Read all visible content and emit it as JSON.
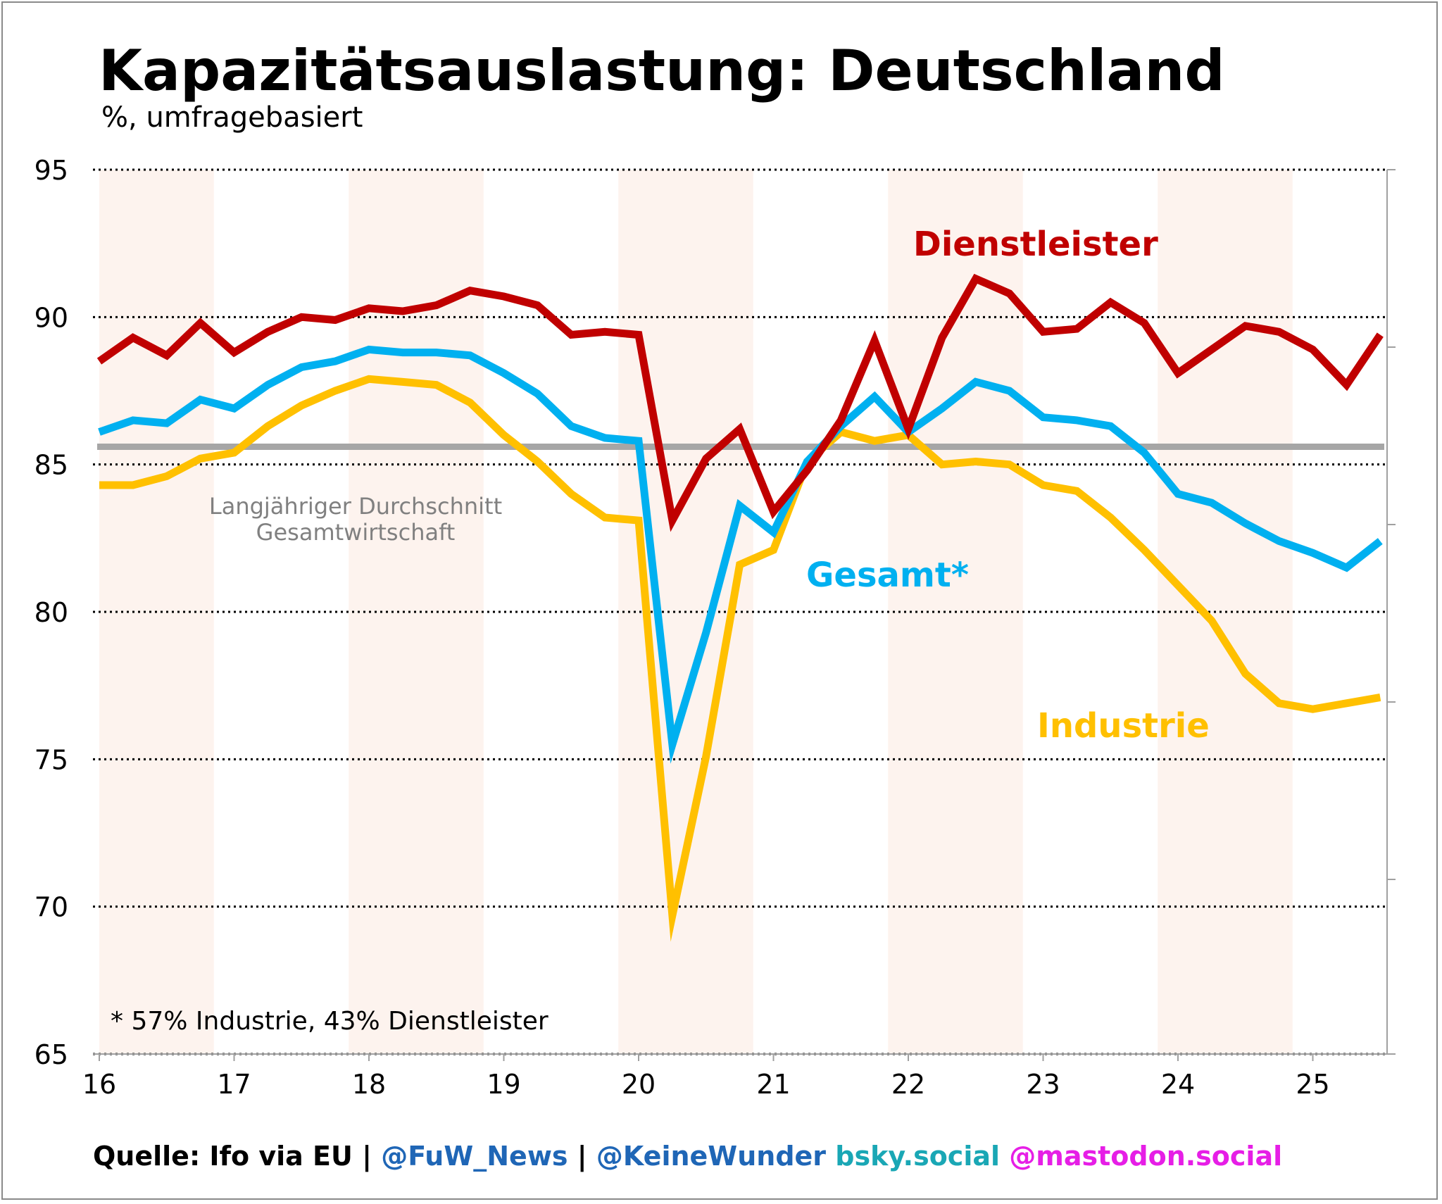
{
  "title": "Kapazitätsauslastung: Deutschland",
  "subtitle": "%, umfragebasiert",
  "footer": {
    "source": "Quelle: Ifo via EU | ",
    "handle1": "@FuW_News",
    "sep": " | ",
    "handle2": "@KeineWunder",
    "bsky": " bsky.social",
    "mastodon": " @mastodon.social"
  },
  "colors": {
    "dienstleister": "#c00000",
    "gesamt": "#00b0f0",
    "industrie": "#ffc000",
    "average": "#a6a6a6",
    "shade": "#fdf3ee",
    "handle1": "#1f66b6",
    "handle2": "#1f66b6",
    "bsky": "#1aa7b5",
    "mastodon": "#e61ee6"
  },
  "chart_data": {
    "type": "line",
    "x_start": 16,
    "x_step": 0.25,
    "x_ticks": [
      "16",
      "17",
      "18",
      "19",
      "20",
      "21",
      "22",
      "23",
      "24",
      "25"
    ],
    "y_ticks": [
      "95",
      "90",
      "85",
      "80",
      "75",
      "70",
      "65"
    ],
    "ylim": [
      65,
      95
    ],
    "xlim": [
      16,
      25.5
    ],
    "shaded_years": [
      [
        16.0,
        16.85
      ],
      [
        17.85,
        18.85
      ],
      [
        19.85,
        20.85
      ],
      [
        21.85,
        22.85
      ],
      [
        23.85,
        24.85
      ]
    ],
    "average": {
      "value": 85.6,
      "label_line1": "Langjähriger Durchschnitt",
      "label_line2": "Gesamtwirtschaft"
    },
    "series": [
      {
        "name": "Dienstleister",
        "key": "dienstleister",
        "values": [
          88.5,
          89.3,
          88.7,
          89.8,
          88.8,
          89.5,
          90.0,
          89.9,
          90.3,
          90.2,
          90.4,
          90.9,
          90.7,
          90.4,
          89.4,
          89.5,
          89.4,
          83.1,
          85.2,
          86.2,
          83.4,
          84.8,
          86.5,
          89.2,
          86.2,
          89.3,
          91.3,
          90.8,
          89.5,
          89.6,
          90.5,
          89.8,
          88.1,
          88.9,
          89.7,
          89.5,
          88.9,
          87.7,
          89.4
        ]
      },
      {
        "name": "Gesamt*",
        "key": "gesamt",
        "values": [
          86.1,
          86.5,
          86.4,
          87.2,
          86.9,
          87.7,
          88.3,
          88.5,
          88.9,
          88.8,
          88.8,
          88.7,
          88.1,
          87.4,
          86.3,
          85.9,
          85.8,
          75.5,
          79.3,
          83.6,
          82.7,
          85.1,
          86.3,
          87.3,
          86.1,
          86.9,
          87.8,
          87.5,
          86.6,
          86.5,
          86.3,
          85.4,
          84.0,
          83.7,
          83.0,
          82.4,
          82.0,
          81.5,
          82.4
        ]
      },
      {
        "name": "Industrie",
        "key": "industrie",
        "values": [
          84.3,
          84.3,
          84.6,
          85.2,
          85.4,
          86.3,
          87.0,
          87.5,
          87.9,
          87.8,
          87.7,
          87.1,
          86.0,
          85.1,
          84.0,
          83.2,
          83.1,
          69.7,
          75.1,
          81.6,
          82.1,
          85.1,
          86.1,
          85.8,
          86.0,
          85.0,
          85.1,
          85.0,
          84.3,
          84.1,
          83.2,
          82.1,
          80.9,
          79.7,
          77.9,
          76.9,
          76.7,
          76.9,
          77.1
        ]
      }
    ],
    "annotations": [
      {
        "key": "dienstleister",
        "text": "Dienstleister"
      },
      {
        "key": "gesamt",
        "text": "Gesamt*"
      },
      {
        "key": "industrie",
        "text": "Industrie"
      }
    ],
    "footnote": "* 57% Industrie, 43% Dienstleister"
  }
}
